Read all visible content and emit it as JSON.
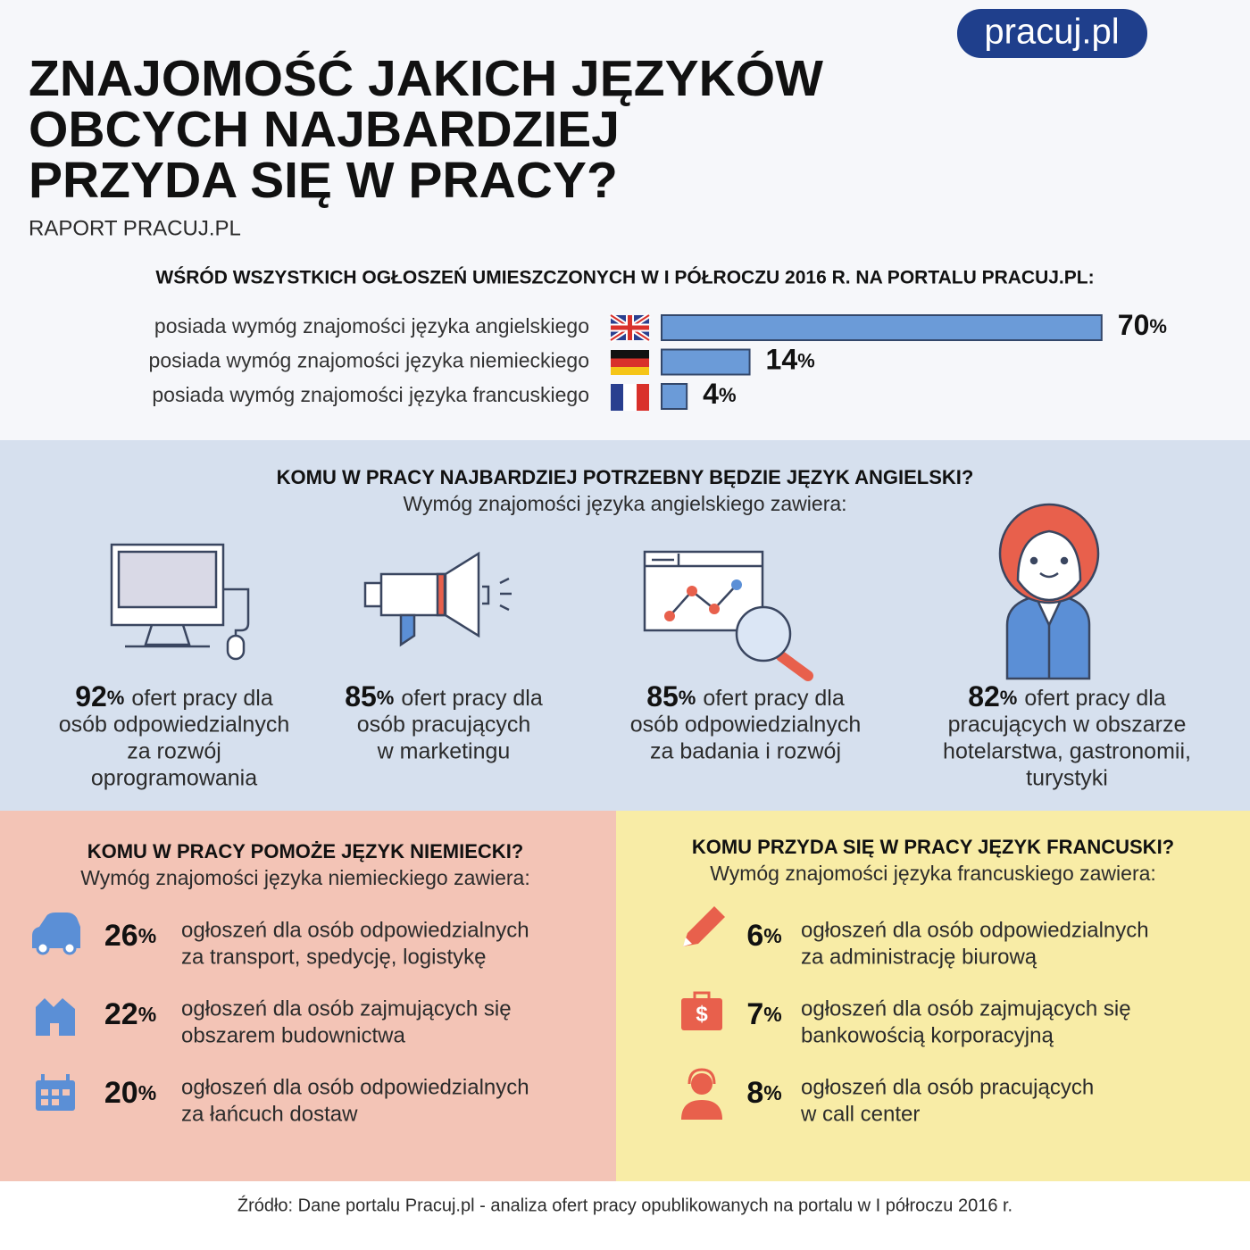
{
  "logo": "pracuj.pl",
  "header": {
    "title_lines": [
      "ZNAJOMOŚĆ JAKICH JĘZYKÓW",
      "OBCYCH NAJBARDZIEJ",
      "PRZYDA SIĘ W PRACY?"
    ],
    "subtitle": "RAPORT PRACUJ.PL"
  },
  "percent_sign": "%",
  "overview": {
    "heading": "WŚRÓD WSZYSTKICH OGŁOSZEŃ UMIESZCZONYCH W I PÓŁROCZU 2016 R. NA PORTALU PRACUJ.PL:",
    "rows": [
      {
        "label": "posiada wymóg znajomości języka angielskiego",
        "value": 70
      },
      {
        "label": "posiada wymóg znajomości języka niemieckiego",
        "value": 14
      },
      {
        "label": "posiada wymóg znajomości języka francuskiego",
        "value": 4
      }
    ]
  },
  "english": {
    "heading": "KOMU W PRACY NAJBARDZIEJ POTRZEBNY BĘDZIE JĘZYK ANGIELSKI?",
    "subheading": "Wymóg znajomości języka angielskiego zawiera:",
    "items": [
      {
        "value": 92,
        "lines": [
          "ofert pracy dla",
          "osób odpowiedzialnych",
          "za rozwój",
          "oprogramowania"
        ]
      },
      {
        "value": 85,
        "lines": [
          "ofert pracy dla",
          "osób pracujących",
          "w marketingu"
        ]
      },
      {
        "value": 85,
        "lines": [
          "ofert pracy dla",
          "osób odpowiedzialnych",
          "za badania i rozwój"
        ]
      },
      {
        "value": 82,
        "lines": [
          "ofert pracy dla",
          "pracujących w obszarze",
          "hotelarstwa, gastronomii,",
          "turystyki"
        ]
      }
    ]
  },
  "german": {
    "heading": "KOMU W PRACY POMOŻE JĘZYK NIEMIECKI?",
    "subheading": "Wymóg znajomości języka niemieckiego zawiera:",
    "items": [
      {
        "value": 26,
        "lines": [
          "ogłoszeń dla osób odpowiedzialnych",
          "za transport, spedycję, logistykę"
        ]
      },
      {
        "value": 22,
        "lines": [
          "ogłoszeń dla osób zajmujących się",
          "obszarem budownictwa"
        ]
      },
      {
        "value": 20,
        "lines": [
          "ogłoszeń dla osób odpowiedzialnych",
          "za łańcuch dostaw"
        ]
      }
    ]
  },
  "french": {
    "heading": "KOMU PRZYDA SIĘ W PRACY JĘZYK FRANCUSKI?",
    "subheading": "Wymóg znajomości języka francuskiego zawiera:",
    "items": [
      {
        "value": 6,
        "lines": [
          "ogłoszeń dla osób odpowiedzialnych",
          "za administrację biurową"
        ]
      },
      {
        "value": 7,
        "lines": [
          "ogłoszeń dla osób zajmujących się",
          "bankowością korporacyjną"
        ]
      },
      {
        "value": 8,
        "lines": [
          "ogłoszeń dla osób pracujących",
          "w call center"
        ]
      }
    ]
  },
  "source": "Źródło: Dane portalu Pracuj.pl - analiza ofert pracy opublikowanych na portalu w I półroczu 2016 r."
}
